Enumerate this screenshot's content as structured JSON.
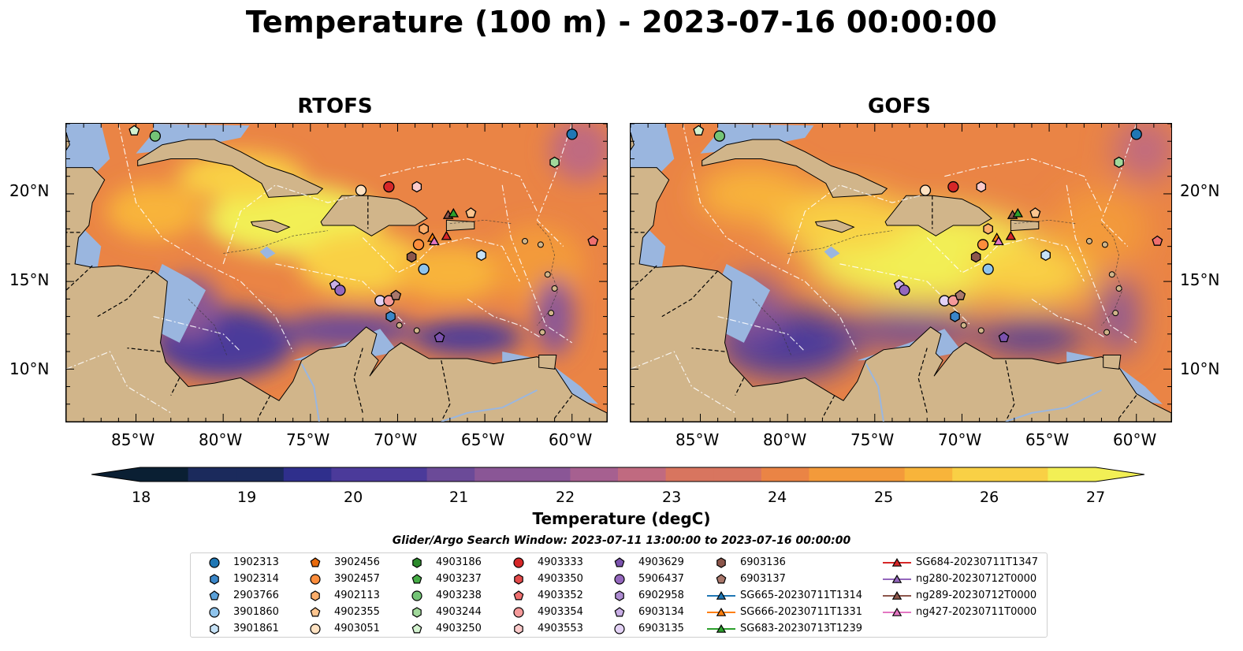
{
  "title": "Temperature (100 m) - 2023-07-16 00:00:00",
  "panels": [
    {
      "name": "RTOFS",
      "variant": "rtofs"
    },
    {
      "name": "GOFS",
      "variant": "gofs"
    }
  ],
  "axes": {
    "lon_ticks": [
      "85°W",
      "80°W",
      "75°W",
      "70°W",
      "65°W",
      "60°W"
    ],
    "lat_ticks": [
      "20°N",
      "15°N",
      "10°N"
    ],
    "lon_range": [
      -89,
      -58
    ],
    "lat_range": [
      7,
      24
    ]
  },
  "colorbar": {
    "label": "Temperature (degC)",
    "ticks": [
      "18",
      "19",
      "20",
      "21",
      "22",
      "23",
      "24",
      "25",
      "26",
      "27"
    ],
    "range": [
      18,
      27
    ],
    "colors": [
      "#0a1f33",
      "#1b2a5c",
      "#2f2f8c",
      "#4b3a9a",
      "#6b4a98",
      "#8a5696",
      "#a66090",
      "#c06a80",
      "#d8755f",
      "#ea8445",
      "#f39a3a",
      "#f8b43a",
      "#f9d045",
      "#f2ef55"
    ]
  },
  "search_window": "Glider/Argo Search Window: 2023-07-11 13:00:00 to 2023-07-16 00:00:00",
  "legend": [
    {
      "label": "1902313",
      "marker": "circle",
      "color": "#1f77b4"
    },
    {
      "label": "1902314",
      "marker": "hexagon",
      "color": "#3a86c8"
    },
    {
      "label": "2903766",
      "marker": "pentagon",
      "color": "#5aa0d8"
    },
    {
      "label": "3901860",
      "marker": "circle",
      "color": "#8fc4ec"
    },
    {
      "label": "3901861",
      "marker": "hexagon",
      "color": "#c6e2f7"
    },
    {
      "label": "3902456",
      "marker": "pentagon",
      "color": "#e86a0c"
    },
    {
      "label": "3902457",
      "marker": "circle",
      "color": "#fd8d3c"
    },
    {
      "label": "4902113",
      "marker": "hexagon",
      "color": "#fdae6b"
    },
    {
      "label": "4902355",
      "marker": "pentagon",
      "color": "#fdc58f"
    },
    {
      "label": "4903051",
      "marker": "circle",
      "color": "#fee2c2"
    },
    {
      "label": "4903186",
      "marker": "hexagon",
      "color": "#2c8a2c"
    },
    {
      "label": "4903237",
      "marker": "pentagon",
      "color": "#46ad46"
    },
    {
      "label": "4903238",
      "marker": "circle",
      "color": "#74c476"
    },
    {
      "label": "4903244",
      "marker": "hexagon",
      "color": "#a1d99b"
    },
    {
      "label": "4903250",
      "marker": "pentagon",
      "color": "#d3f2cf"
    },
    {
      "label": "4903333",
      "marker": "circle",
      "color": "#d62728"
    },
    {
      "label": "4903350",
      "marker": "hexagon",
      "color": "#e34a4a"
    },
    {
      "label": "4903352",
      "marker": "pentagon",
      "color": "#ef6f6f"
    },
    {
      "label": "4903354",
      "marker": "circle",
      "color": "#f59a9a"
    },
    {
      "label": "4903553",
      "marker": "hexagon",
      "color": "#fbcaca"
    },
    {
      "label": "4903629",
      "marker": "pentagon",
      "color": "#7b52ae"
    },
    {
      "label": "5906437",
      "marker": "circle",
      "color": "#9467bd"
    },
    {
      "label": "6902958",
      "marker": "hexagon",
      "color": "#ad8bd1"
    },
    {
      "label": "6903134",
      "marker": "pentagon",
      "color": "#c9aee6"
    },
    {
      "label": "6903135",
      "marker": "circle",
      "color": "#e3d2f5"
    },
    {
      "label": "6903136",
      "marker": "hexagon",
      "color": "#8c564b"
    },
    {
      "label": "6903137",
      "marker": "pentagon",
      "color": "#a9776b"
    },
    {
      "label": "SG665-20230711T1314",
      "marker": "triangle",
      "color": "#1f77b4",
      "line": true
    },
    {
      "label": "SG666-20230711T1331",
      "marker": "triangle",
      "color": "#ff7f0e",
      "line": true
    },
    {
      "label": "SG683-20230713T1239",
      "marker": "triangle",
      "color": "#2ca02c",
      "line": true
    },
    {
      "label": "SG684-20230711T1347",
      "marker": "triangle",
      "color": "#d62728",
      "line": true
    },
    {
      "label": "ng280-20230712T0000",
      "marker": "triangle",
      "color": "#9467bd",
      "line": true
    },
    {
      "label": "ng289-20230712T0000",
      "marker": "triangle",
      "color": "#8c564b",
      "line": true
    },
    {
      "label": "ng427-20230711T0000",
      "marker": "triangle",
      "color": "#e377c2",
      "line": true
    }
  ],
  "floats": [
    {
      "id": "1902313",
      "lon": -60.0,
      "lat": 23.4
    },
    {
      "id": "4903238",
      "lon": -83.9,
      "lat": 23.3
    },
    {
      "id": "4903250",
      "lon": -85.1,
      "lat": 23.6
    },
    {
      "id": "4903244",
      "lon": -61.0,
      "lat": 21.8
    },
    {
      "id": "4903051",
      "lon": -72.1,
      "lat": 20.2
    },
    {
      "id": "4903333",
      "lon": -70.5,
      "lat": 20.4
    },
    {
      "id": "4903553",
      "lon": -68.9,
      "lat": 20.4
    },
    {
      "id": "4902355",
      "lon": -65.8,
      "lat": 18.9
    },
    {
      "id": "4902113",
      "lon": -68.5,
      "lat": 18.0
    },
    {
      "id": "3902457",
      "lon": -68.8,
      "lat": 17.1
    },
    {
      "id": "6903136",
      "lon": -69.2,
      "lat": 16.4
    },
    {
      "id": "3901861",
      "lon": -65.2,
      "lat": 16.5
    },
    {
      "id": "3901860",
      "lon": -68.5,
      "lat": 15.7
    },
    {
      "id": "4903352",
      "lon": -58.8,
      "lat": 17.3
    },
    {
      "id": "6903134",
      "lon": -73.6,
      "lat": 14.8
    },
    {
      "id": "5906437",
      "lon": -73.3,
      "lat": 14.5
    },
    {
      "id": "6903135",
      "lon": -71.0,
      "lat": 13.9
    },
    {
      "id": "4903354",
      "lon": -70.5,
      "lat": 13.9
    },
    {
      "id": "6903137",
      "lon": -70.1,
      "lat": 14.2
    },
    {
      "id": "1902314",
      "lon": -70.4,
      "lat": 13.0
    },
    {
      "id": "4903629",
      "lon": -67.6,
      "lat": 11.8
    },
    {
      "id": "SG666-20230711T1331",
      "lon": -68.0,
      "lat": 17.5
    },
    {
      "id": "SG684-20230711T1347",
      "lon": -67.2,
      "lat": 17.6
    },
    {
      "id": "ng427-20230711T0000",
      "lon": -67.9,
      "lat": 17.3
    },
    {
      "id": "ng289-20230712T0000",
      "lon": -67.1,
      "lat": 18.8
    },
    {
      "id": "SG683-20230713T1239",
      "lon": -66.8,
      "lat": 18.9
    }
  ]
}
